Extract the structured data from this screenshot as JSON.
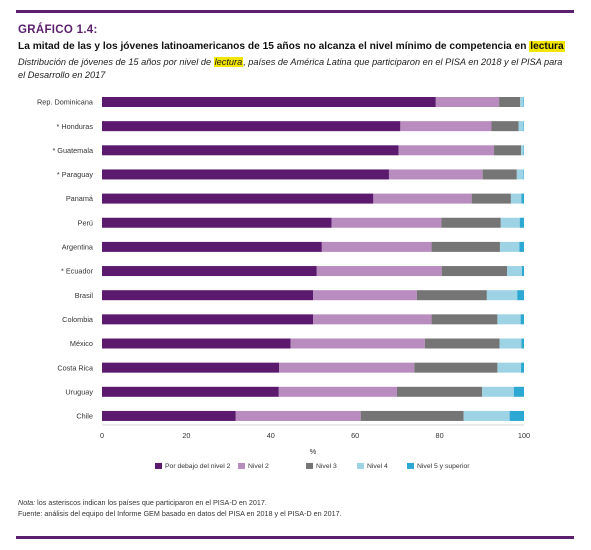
{
  "header": {
    "kicker": "GRÁFICO 1.4:",
    "title_pre": "La mitad de las y los jóvenes latinoamericanos de 15 años no alcanza el nivel mínimo de competencia en ",
    "title_highlight": "lectura",
    "subtitle_pre": "Distribución de jóvenes de 15 años por nivel de ",
    "subtitle_highlight": "lectura",
    "subtitle_post": ", países de América Latina que participaron en el PISA en 2018 y el PISA para el Desarrollo en 2017"
  },
  "notes": {
    "note_label": "Nota:",
    "note_text": " los asteriscos indican los países que participaron en el PISA-D en 2017.",
    "source": "Fuente: análisis del equipo del Informe GEM basado en datos del PISA en 2018 y el PISA-D en 2017."
  },
  "colors": {
    "series": [
      "#5b1a6e",
      "#b98cc0",
      "#757575",
      "#9ed3e6",
      "#2da8d2"
    ],
    "rule": "#5b1f6e"
  },
  "chart_data": {
    "type": "bar",
    "orientation": "horizontal",
    "stacked": true,
    "categories": [
      "Rep. Dominicana",
      "* Honduras",
      "* Guatemala",
      "* Paraguay",
      "Panamá",
      "Perú",
      "Argentina",
      "* Ecuador",
      "Brasil",
      "Colombia",
      "México",
      "Costa Rica",
      "Uruguay",
      "Chile"
    ],
    "series": [
      {
        "name": "Por debajo del nivel 2",
        "values": [
          79.1,
          70.7,
          70.3,
          68.0,
          64.3,
          54.4,
          52.1,
          50.9,
          50.0,
          50.0,
          44.7,
          42.0,
          41.9,
          31.7
        ]
      },
      {
        "name": "Nivel 2",
        "values": [
          15.0,
          21.6,
          22.6,
          22.2,
          23.3,
          26.0,
          26.0,
          29.6,
          24.6,
          28.1,
          31.8,
          32.0,
          28.0,
          29.6
        ]
      },
      {
        "name": "Nivel 3",
        "values": [
          5.0,
          6.4,
          6.4,
          8.1,
          9.3,
          14.1,
          16.2,
          15.5,
          16.6,
          15.6,
          17.7,
          19.7,
          20.2,
          24.4
        ]
      },
      {
        "name": "Nivel 4",
        "values": [
          0.8,
          1.2,
          0.6,
          1.6,
          2.5,
          4.5,
          4.6,
          3.5,
          7.2,
          5.5,
          5.2,
          5.6,
          7.5,
          10.9
        ]
      },
      {
        "name": "Nivel 5 y superior",
        "values": [
          0.1,
          0.1,
          0.1,
          0.1,
          0.6,
          1.0,
          1.1,
          0.5,
          1.6,
          0.8,
          0.6,
          0.7,
          2.4,
          3.4
        ]
      }
    ],
    "xlabel": "%",
    "xlim": [
      0,
      100
    ],
    "xticks": [
      0,
      20,
      40,
      60,
      80,
      100
    ],
    "grid": false,
    "legend_position": "bottom"
  }
}
